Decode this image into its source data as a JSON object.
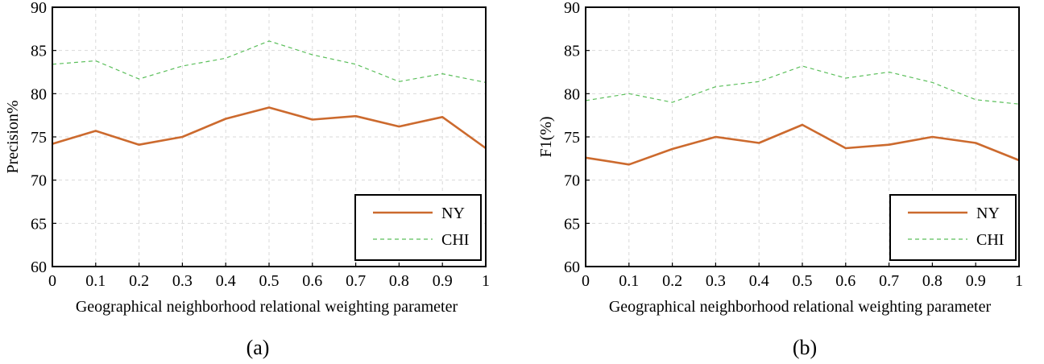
{
  "colors": {
    "ny": "#cc6a2e",
    "chi": "#5bbf5b"
  },
  "chart_data": [
    {
      "type": "line",
      "caption": "(a)",
      "xlabel": "Geographical neighborhood relational weighting parameter",
      "ylabel": "Precision%",
      "x": [
        0,
        0.1,
        0.2,
        0.3,
        0.4,
        0.5,
        0.6,
        0.7,
        0.8,
        0.9,
        1
      ],
      "x_tick_labels": [
        "0",
        "0.1",
        "0.2",
        "0.3",
        "0.4",
        "0.5",
        "0.6",
        "0.7",
        "0.8",
        "0.9",
        "1"
      ],
      "ylim": [
        60,
        90
      ],
      "y_ticks": [
        60,
        65,
        70,
        75,
        80,
        85,
        90
      ],
      "grid": true,
      "legend_position": "bottom-right",
      "series": [
        {
          "name": "NY",
          "style": "solid",
          "values": [
            74.2,
            75.7,
            74.1,
            75.0,
            77.1,
            78.4,
            77.0,
            77.4,
            76.2,
            77.3,
            73.7
          ]
        },
        {
          "name": "CHI",
          "style": "dashed",
          "values": [
            83.4,
            83.8,
            81.7,
            83.2,
            84.1,
            86.1,
            84.5,
            83.4,
            81.4,
            82.3,
            81.3
          ]
        }
      ]
    },
    {
      "type": "line",
      "caption": "(b)",
      "xlabel": "Geographical neighborhood relational weighting parameter",
      "ylabel": "F1(%)",
      "x": [
        0,
        0.1,
        0.2,
        0.3,
        0.4,
        0.5,
        0.6,
        0.7,
        0.8,
        0.9,
        1
      ],
      "x_tick_labels": [
        "0",
        "0.1",
        "0.2",
        "0.3",
        "0.4",
        "0.5",
        "0.6",
        "0.7",
        "0.8",
        "0.9",
        "1"
      ],
      "ylim": [
        60,
        90
      ],
      "y_ticks": [
        60,
        65,
        70,
        75,
        80,
        85,
        90
      ],
      "grid": true,
      "legend_position": "bottom-right",
      "series": [
        {
          "name": "NY",
          "style": "solid",
          "values": [
            72.6,
            71.8,
            73.6,
            75.0,
            74.3,
            76.4,
            73.7,
            74.1,
            75.0,
            74.3,
            72.3
          ]
        },
        {
          "name": "CHI",
          "style": "dashed",
          "values": [
            79.2,
            80.0,
            79.0,
            80.8,
            81.4,
            83.2,
            81.8,
            82.5,
            81.3,
            79.3,
            78.8
          ]
        }
      ]
    }
  ]
}
